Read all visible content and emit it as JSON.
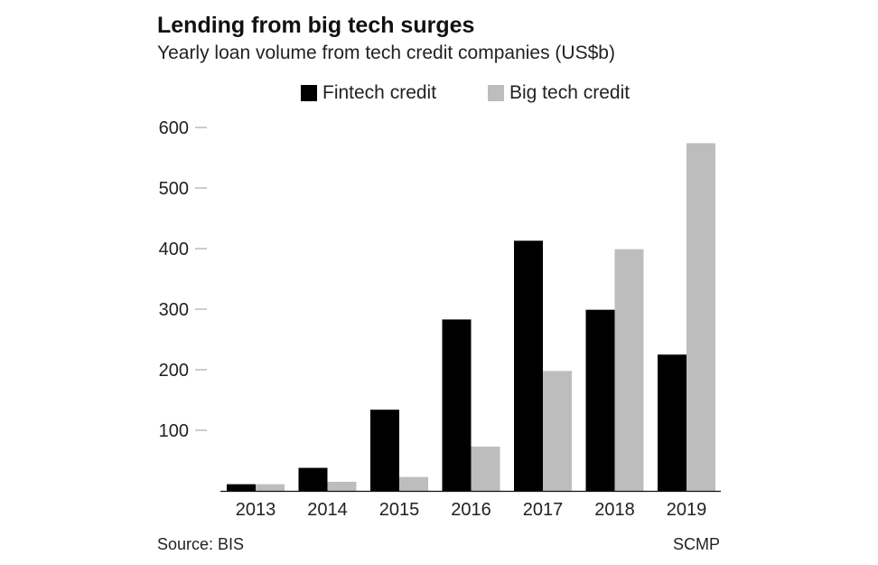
{
  "colors": {
    "fintech": "#000000",
    "bigtech": "#bdbdbd",
    "tick_mark": "#999999",
    "axis_line": "#111111",
    "text": "#222222"
  },
  "chart_data": {
    "type": "bar",
    "title": "Lending from big tech surges",
    "subtitle": "Yearly loan volume from tech credit companies (US$b)",
    "categories": [
      "2013",
      "2014",
      "2015",
      "2016",
      "2017",
      "2018",
      "2019"
    ],
    "series": [
      {
        "name": "Fintech credit",
        "values": [
          11,
          38,
          134,
          283,
          413,
          299,
          225
        ]
      },
      {
        "name": "Big tech credit",
        "values": [
          11,
          15,
          23,
          73,
          198,
          399,
          574
        ]
      }
    ],
    "y_ticks": [
      100,
      200,
      300,
      400,
      500,
      600
    ],
    "ylim": [
      0,
      600
    ],
    "xlabel": "",
    "ylabel": "",
    "grid": false,
    "legend_position": "top",
    "source": "Source: BIS",
    "credit": "SCMP"
  }
}
